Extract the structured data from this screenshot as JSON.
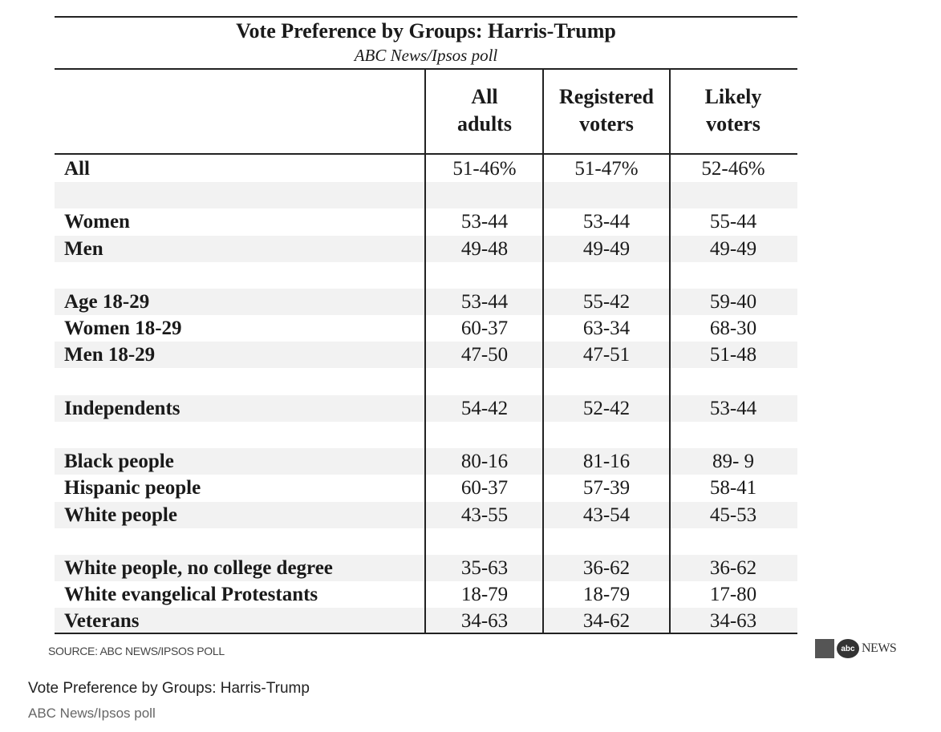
{
  "table": {
    "title": "Vote Preference by Groups: Harris-Trump",
    "subtitle": "ABC News/Ipsos poll",
    "columns": [
      {
        "line1": "All",
        "line2": "adults"
      },
      {
        "line1": "Registered",
        "line2": "voters"
      },
      {
        "line1": "Likely",
        "line2": "voters"
      }
    ],
    "rows": [
      {
        "label": "All",
        "values": [
          "51-46%",
          "51-47%",
          "52-46%"
        ]
      },
      {
        "label": "",
        "values": [
          "",
          "",
          ""
        ]
      },
      {
        "label": "Women",
        "values": [
          "53-44",
          "53-44",
          "55-44"
        ]
      },
      {
        "label": "Men",
        "values": [
          "49-48",
          "49-49",
          "49-49"
        ]
      },
      {
        "label": "",
        "values": [
          "",
          "",
          ""
        ]
      },
      {
        "label": "Age 18-29",
        "values": [
          "53-44",
          "55-42",
          "59-40"
        ]
      },
      {
        "label": "Women 18-29",
        "values": [
          "60-37",
          "63-34",
          "68-30"
        ]
      },
      {
        "label": "Men 18-29",
        "values": [
          "47-50",
          "47-51",
          "51-48"
        ]
      },
      {
        "label": "",
        "values": [
          "",
          "",
          ""
        ]
      },
      {
        "label": "Independents",
        "values": [
          "54-42",
          "52-42",
          "53-44"
        ]
      },
      {
        "label": "",
        "values": [
          "",
          "",
          ""
        ]
      },
      {
        "label": "Black people",
        "values": [
          "80-16",
          "81-16",
          "89- 9"
        ]
      },
      {
        "label": "Hispanic people",
        "values": [
          "60-37",
          "57-39",
          "58-41"
        ]
      },
      {
        "label": "White people",
        "values": [
          "43-55",
          "43-54",
          "45-53"
        ]
      },
      {
        "label": "",
        "values": [
          "",
          "",
          ""
        ]
      },
      {
        "label": "White people, no college degree",
        "values": [
          "35-63",
          "36-62",
          "36-62"
        ]
      },
      {
        "label": "White evangelical Protestants",
        "values": [
          "18-79",
          "18-79",
          "17-80"
        ]
      },
      {
        "label": "Veterans",
        "values": [
          "34-63",
          "34-62",
          "34-63"
        ]
      }
    ]
  },
  "source": "SOURCE: ABC NEWS/IPSOS POLL",
  "logo": {
    "text": "NEWS",
    "disc": "abc"
  },
  "caption": {
    "title": "Vote Preference by Groups: Harris-Trump",
    "subtitle": "ABC News/Ipsos poll"
  }
}
